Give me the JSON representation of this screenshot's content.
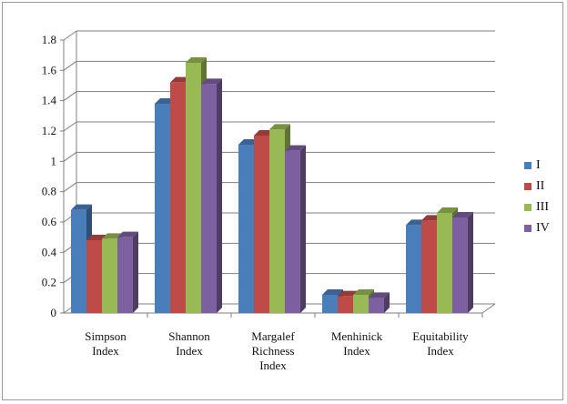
{
  "chart_data": {
    "type": "bar",
    "title": "",
    "xlabel": "",
    "ylabel": "",
    "ylim": [
      0,
      1.8
    ],
    "yticks": [
      "0",
      "0.2",
      "0.4",
      "0.6",
      "0.8",
      "1",
      "1.2",
      "1.4",
      "1.6",
      "1.8"
    ],
    "grid": true,
    "three_d": true,
    "legend_position": "right",
    "categories": [
      [
        "Simpson",
        "Index"
      ],
      [
        "Shannon",
        "Index"
      ],
      [
        "Margalef",
        "Richness",
        "Index"
      ],
      [
        "Menhinick",
        "Index"
      ],
      [
        "Equitability",
        "Index"
      ]
    ],
    "series": [
      {
        "name": "I",
        "color": "#4a7ebb",
        "values": [
          0.68,
          1.38,
          1.11,
          0.12,
          0.58
        ]
      },
      {
        "name": "II",
        "color": "#be4b48",
        "values": [
          0.48,
          1.52,
          1.17,
          0.11,
          0.61
        ]
      },
      {
        "name": "III",
        "color": "#98b954",
        "values": [
          0.49,
          1.65,
          1.21,
          0.12,
          0.66
        ]
      },
      {
        "name": "IV",
        "color": "#7d60a0",
        "values": [
          0.5,
          1.51,
          1.07,
          0.1,
          0.63
        ]
      }
    ]
  }
}
